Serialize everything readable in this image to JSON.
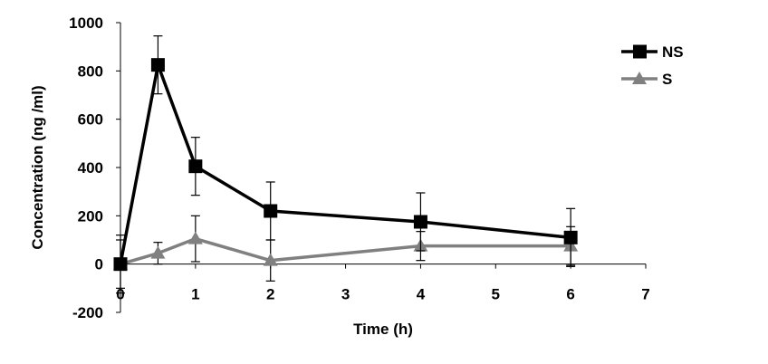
{
  "chart_data": {
    "type": "line",
    "xlabel": "Time (h)",
    "ylabel": "Concentration (ng /ml)",
    "xlim": [
      0,
      7
    ],
    "ylim": [
      -200,
      1000
    ],
    "xticks": [
      "0",
      "1",
      "2",
      "3",
      "4",
      "5",
      "6",
      "7"
    ],
    "yticks": [
      "-200",
      "0",
      "200",
      "400",
      "600",
      "800",
      "1000"
    ],
    "grid": false,
    "legend_position": "top-right",
    "series": [
      {
        "name": "NS",
        "color": "#000000",
        "marker": "square",
        "x": [
          0,
          0.5,
          1,
          2,
          4,
          6
        ],
        "y": [
          0,
          825,
          405,
          220,
          175,
          110
        ],
        "error": [
          120,
          120,
          120,
          120,
          120,
          120
        ]
      },
      {
        "name": "S",
        "color": "#808080",
        "marker": "triangle",
        "x": [
          0,
          0.5,
          1,
          2,
          4,
          6
        ],
        "y": [
          0,
          45,
          105,
          15,
          75,
          75
        ],
        "error": [
          100,
          45,
          95,
          85,
          60,
          80
        ]
      }
    ]
  }
}
